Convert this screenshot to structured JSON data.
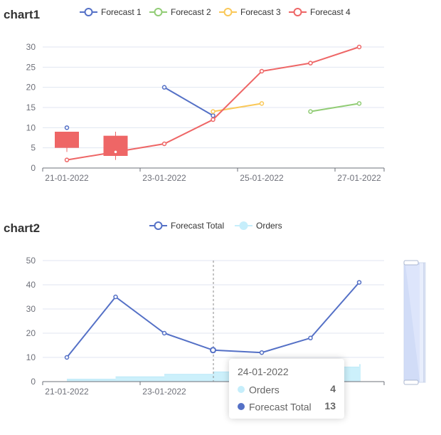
{
  "chart_data": [
    {
      "type": "line",
      "title": "chart1",
      "x": [
        "21-01-2022",
        "22-01-2022",
        "23-01-2022",
        "24-01-2022",
        "25-01-2022",
        "26-01-2022",
        "27-01-2022"
      ],
      "x_tick_labels": [
        "21-01-2022",
        "23-01-2022",
        "25-01-2022",
        "27-01-2022"
      ],
      "ylim": [
        0,
        30
      ],
      "y_ticks": [
        0,
        5,
        10,
        15,
        20,
        25,
        30
      ],
      "legend_position": "top",
      "grid": true,
      "series": [
        {
          "name": "Forecast 1",
          "color": "#5470c6",
          "values": [
            10,
            null,
            20,
            13,
            null,
            null,
            null
          ]
        },
        {
          "name": "Forecast 2",
          "color": "#91cc75",
          "values": [
            null,
            null,
            null,
            null,
            null,
            14,
            16
          ]
        },
        {
          "name": "Forecast 3",
          "color": "#fac858",
          "values": [
            null,
            null,
            null,
            14,
            16,
            null,
            null
          ]
        },
        {
          "name": "Forecast 4",
          "color": "#ee6666",
          "values": [
            2,
            4,
            6,
            12,
            24,
            26,
            30
          ]
        }
      ],
      "candlestick": {
        "color": "#ee6666",
        "items": [
          {
            "x": "21-01-2022",
            "open": 5,
            "close": 9,
            "low": 4,
            "high": 9
          },
          {
            "x": "22-01-2022",
            "open": 3,
            "close": 8,
            "low": 2,
            "high": 9
          }
        ]
      }
    },
    {
      "type": "line",
      "title": "chart2",
      "x": [
        "21-01-2022",
        "22-01-2022",
        "23-01-2022",
        "24-01-2022",
        "25-01-2022",
        "26-01-2022",
        "27-01-2022"
      ],
      "x_tick_labels": [
        "21-01-2022",
        "23-01-2022"
      ],
      "ylim": [
        0,
        50
      ],
      "y_ticks": [
        0,
        10,
        20,
        30,
        40,
        50
      ],
      "legend_position": "top",
      "grid": true,
      "series": [
        {
          "name": "Forecast Total",
          "type": "line",
          "color": "#5470c6",
          "values": [
            10,
            35,
            20,
            13,
            12,
            18,
            41
          ]
        },
        {
          "name": "Orders",
          "type": "area-step",
          "color": "#c6eefb",
          "values": [
            1,
            2,
            3,
            4,
            5,
            6,
            7
          ]
        }
      ],
      "tooltip": {
        "title": "24-01-2022",
        "rows": [
          {
            "name": "Orders",
            "value": "4",
            "color": "#c6eefb"
          },
          {
            "name": "Forecast Total",
            "value": "13",
            "color": "#5470c6"
          }
        ]
      }
    }
  ]
}
